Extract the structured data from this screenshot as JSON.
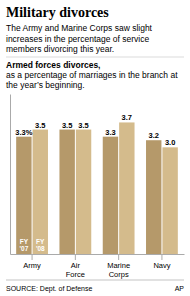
{
  "chart_data": {
    "type": "bar",
    "title": "Military divorces",
    "subtitle": "The Army and Marine Corps saw slight increases in the percentage of service members divorcing this year.",
    "annotations": [
      "Armed forces divorces,",
      "as a percentage of marriages in the branch at the year’s beginning.",
      "SOURCE: Dept. of Defense",
      "AP"
    ],
    "categories": [
      "Army",
      "Air\nForce",
      "Marine\nCorps",
      "Navy"
    ],
    "series": [
      {
        "name": "FY\n'07",
        "color": "#b5996a",
        "values": [
          3.3,
          3.5,
          3.3,
          3.2
        ],
        "value_labels": [
          "3.3%",
          "3.5",
          "3.3",
          "3.2"
        ]
      },
      {
        "name": "FY\n'08",
        "color": "#d4bb8c",
        "values": [
          3.5,
          3.5,
          3.7,
          3.0
        ],
        "value_labels": [
          "3.5",
          "3.5",
          "3.7",
          "3.0"
        ]
      }
    ],
    "ylim": [
      0,
      4.5
    ],
    "data_labels": true,
    "tick_labels": "x",
    "grid": false
  }
}
